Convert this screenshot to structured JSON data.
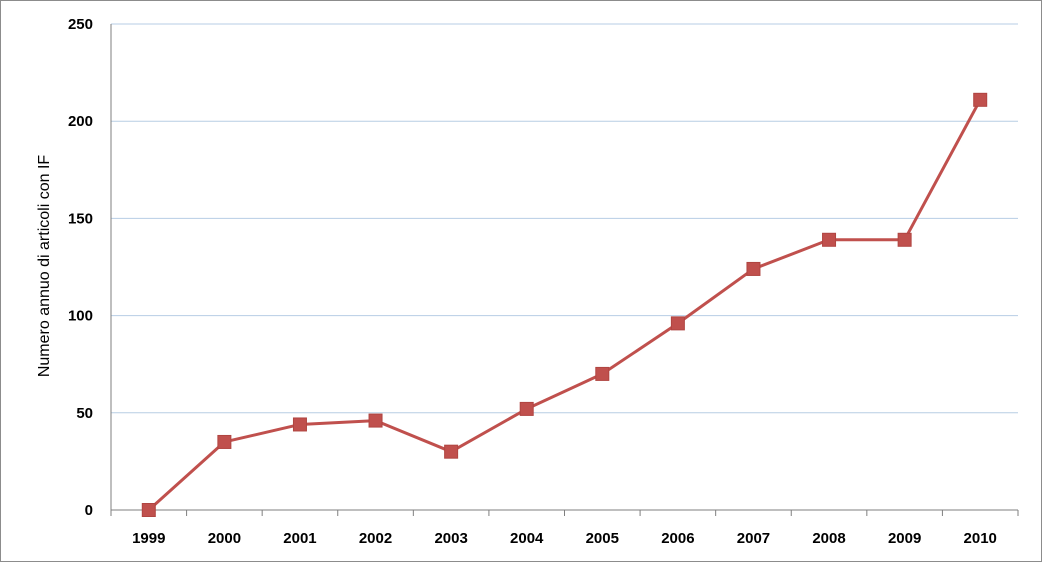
{
  "chart_data": {
    "type": "line",
    "title": "",
    "xlabel": "",
    "ylabel": "Numero annuo di  articoli con IF",
    "categories": [
      "1999",
      "2000",
      "2001",
      "2002",
      "2003",
      "2004",
      "2005",
      "2006",
      "2007",
      "2008",
      "2009",
      "2010"
    ],
    "series": [
      {
        "values": [
          0,
          35,
          44,
          46,
          30,
          52,
          70,
          96,
          124,
          139,
          139,
          211
        ]
      }
    ],
    "ylim": [
      0,
      250
    ],
    "yticks": [
      0,
      50,
      100,
      150,
      200,
      250
    ],
    "grid": true,
    "legend": "none",
    "colors": {
      "line": "#c0504d",
      "marker": "#c0504d",
      "grid": "#b7cde4",
      "axis": "#7f7f7f"
    }
  }
}
